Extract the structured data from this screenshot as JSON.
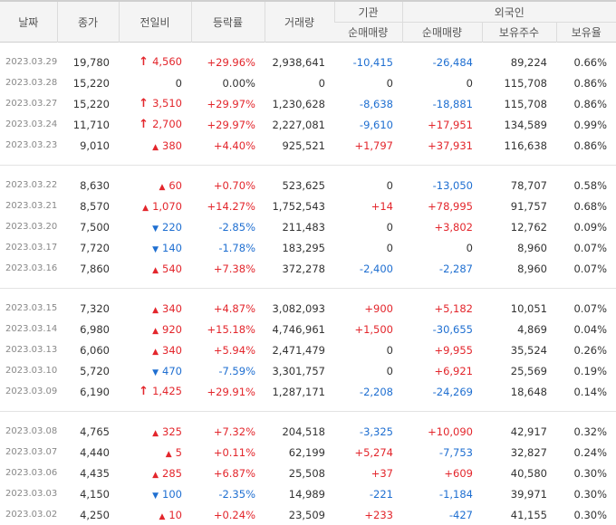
{
  "headers": {
    "date": "날짜",
    "close": "종가",
    "change": "전일비",
    "rate": "등락률",
    "volume": "거래량",
    "institution": "기관",
    "foreign": "외국인",
    "inst_net": "순매매량",
    "foreign_net": "순매매량",
    "foreign_hold": "보유주수",
    "foreign_ratio": "보유율"
  },
  "colors": {
    "up": "#e3262c",
    "down": "#1f6fd1"
  },
  "groups": [
    [
      {
        "date": "2023.03.29",
        "close": "19,780",
        "dir": "upper",
        "change": "4,560",
        "rate": "+29.96%",
        "volume": "2,938,641",
        "inst": "-10,415",
        "fnet": "-26,484",
        "fhold": "89,224",
        "fratio": "0.66%"
      },
      {
        "date": "2023.03.28",
        "close": "15,220",
        "dir": "flat",
        "change": "0",
        "rate": "0.00%",
        "volume": "0",
        "inst": "0",
        "fnet": "0",
        "fhold": "115,708",
        "fratio": "0.86%"
      },
      {
        "date": "2023.03.27",
        "close": "15,220",
        "dir": "upper",
        "change": "3,510",
        "rate": "+29.97%",
        "volume": "1,230,628",
        "inst": "-8,638",
        "fnet": "-18,881",
        "fhold": "115,708",
        "fratio": "0.86%"
      },
      {
        "date": "2023.03.24",
        "close": "11,710",
        "dir": "upper",
        "change": "2,700",
        "rate": "+29.97%",
        "volume": "2,227,081",
        "inst": "-9,610",
        "fnet": "+17,951",
        "fhold": "134,589",
        "fratio": "0.99%"
      },
      {
        "date": "2023.03.23",
        "close": "9,010",
        "dir": "up",
        "change": "380",
        "rate": "+4.40%",
        "volume": "925,521",
        "inst": "+1,797",
        "fnet": "+37,931",
        "fhold": "116,638",
        "fratio": "0.86%"
      }
    ],
    [
      {
        "date": "2023.03.22",
        "close": "8,630",
        "dir": "up",
        "change": "60",
        "rate": "+0.70%",
        "volume": "523,625",
        "inst": "0",
        "fnet": "-13,050",
        "fhold": "78,707",
        "fratio": "0.58%"
      },
      {
        "date": "2023.03.21",
        "close": "8,570",
        "dir": "up",
        "change": "1,070",
        "rate": "+14.27%",
        "volume": "1,752,543",
        "inst": "+14",
        "fnet": "+78,995",
        "fhold": "91,757",
        "fratio": "0.68%"
      },
      {
        "date": "2023.03.20",
        "close": "7,500",
        "dir": "down",
        "change": "220",
        "rate": "-2.85%",
        "volume": "211,483",
        "inst": "0",
        "fnet": "+3,802",
        "fhold": "12,762",
        "fratio": "0.09%"
      },
      {
        "date": "2023.03.17",
        "close": "7,720",
        "dir": "down",
        "change": "140",
        "rate": "-1.78%",
        "volume": "183,295",
        "inst": "0",
        "fnet": "0",
        "fhold": "8,960",
        "fratio": "0.07%"
      },
      {
        "date": "2023.03.16",
        "close": "7,860",
        "dir": "up",
        "change": "540",
        "rate": "+7.38%",
        "volume": "372,278",
        "inst": "-2,400",
        "fnet": "-2,287",
        "fhold": "8,960",
        "fratio": "0.07%"
      }
    ],
    [
      {
        "date": "2023.03.15",
        "close": "7,320",
        "dir": "up",
        "change": "340",
        "rate": "+4.87%",
        "volume": "3,082,093",
        "inst": "+900",
        "fnet": "+5,182",
        "fhold": "10,051",
        "fratio": "0.07%"
      },
      {
        "date": "2023.03.14",
        "close": "6,980",
        "dir": "up",
        "change": "920",
        "rate": "+15.18%",
        "volume": "4,746,961",
        "inst": "+1,500",
        "fnet": "-30,655",
        "fhold": "4,869",
        "fratio": "0.04%"
      },
      {
        "date": "2023.03.13",
        "close": "6,060",
        "dir": "up",
        "change": "340",
        "rate": "+5.94%",
        "volume": "2,471,479",
        "inst": "0",
        "fnet": "+9,955",
        "fhold": "35,524",
        "fratio": "0.26%"
      },
      {
        "date": "2023.03.10",
        "close": "5,720",
        "dir": "down",
        "change": "470",
        "rate": "-7.59%",
        "volume": "3,301,757",
        "inst": "0",
        "fnet": "+6,921",
        "fhold": "25,569",
        "fratio": "0.19%"
      },
      {
        "date": "2023.03.09",
        "close": "6,190",
        "dir": "upper",
        "change": "1,425",
        "rate": "+29.91%",
        "volume": "1,287,171",
        "inst": "-2,208",
        "fnet": "-24,269",
        "fhold": "18,648",
        "fratio": "0.14%"
      }
    ],
    [
      {
        "date": "2023.03.08",
        "close": "4,765",
        "dir": "up",
        "change": "325",
        "rate": "+7.32%",
        "volume": "204,518",
        "inst": "-3,325",
        "fnet": "+10,090",
        "fhold": "42,917",
        "fratio": "0.32%"
      },
      {
        "date": "2023.03.07",
        "close": "4,440",
        "dir": "up",
        "change": "5",
        "rate": "+0.11%",
        "volume": "62,199",
        "inst": "+5,274",
        "fnet": "-7,753",
        "fhold": "32,827",
        "fratio": "0.24%"
      },
      {
        "date": "2023.03.06",
        "close": "4,435",
        "dir": "up",
        "change": "285",
        "rate": "+6.87%",
        "volume": "25,508",
        "inst": "+37",
        "fnet": "+609",
        "fhold": "40,580",
        "fratio": "0.30%"
      },
      {
        "date": "2023.03.03",
        "close": "4,150",
        "dir": "down",
        "change": "100",
        "rate": "-2.35%",
        "volume": "14,989",
        "inst": "-221",
        "fnet": "-1,184",
        "fhold": "39,971",
        "fratio": "0.30%"
      },
      {
        "date": "2023.03.02",
        "close": "4,250",
        "dir": "up",
        "change": "10",
        "rate": "+0.24%",
        "volume": "23,509",
        "inst": "+233",
        "fnet": "-427",
        "fhold": "41,155",
        "fratio": "0.30%"
      }
    ]
  ]
}
